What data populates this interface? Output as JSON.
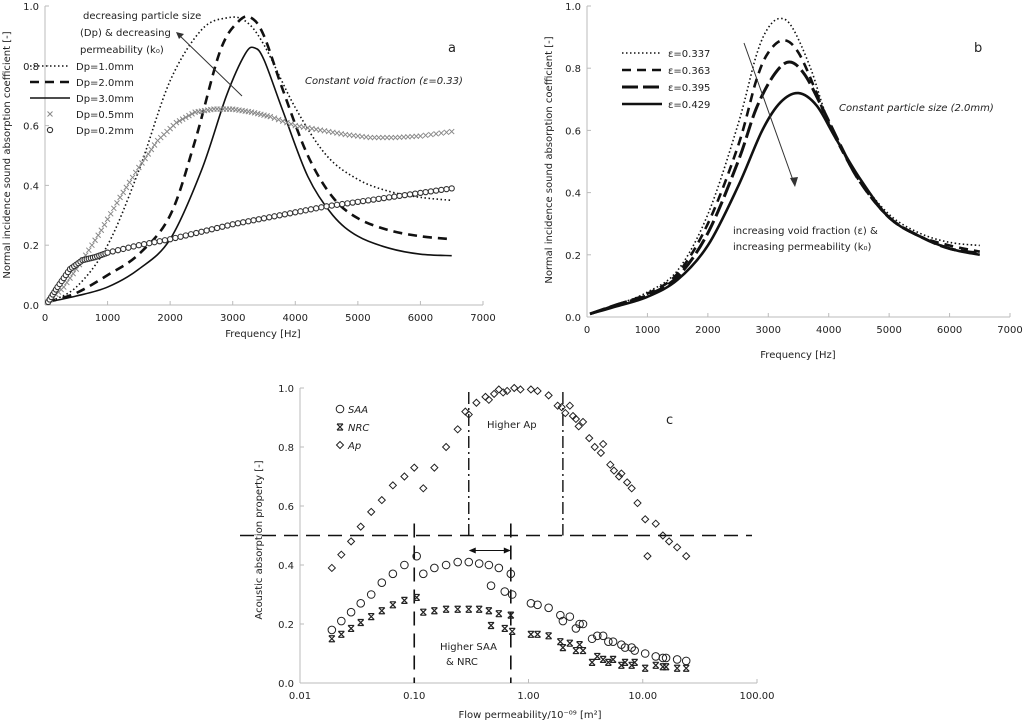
{
  "chart_data": [
    {
      "id": "a",
      "type": "line",
      "panel_label": "a",
      "xlabel": "Frequency [Hz]",
      "ylabel": "Normal incidence sound absorption coefficient [-]",
      "xlim": [
        0,
        7000
      ],
      "ylim": [
        0,
        1.0
      ],
      "x_ticks": [
        "0",
        "1000",
        "2000",
        "3000",
        "4000",
        "5000",
        "6000",
        "7000"
      ],
      "x_tick_values": [
        0,
        1000,
        2000,
        3000,
        4000,
        5000,
        6000,
        7000
      ],
      "y_ticks": [
        "0.0",
        "0.2",
        "0.4",
        "0.6",
        "0.8",
        "1.0"
      ],
      "y_tick_values": [
        0,
        0.2,
        0.4,
        0.6,
        0.8,
        1.0
      ],
      "annotations": [
        {
          "text": "decreasing particle size",
          "line": 1
        },
        {
          "text": "(Dp) & decreasing",
          "line": 2
        },
        {
          "text": "permeability (k₀)",
          "line": 3
        },
        {
          "text": "Constant void fraction (ε=0.33)",
          "line": 0
        }
      ],
      "series": [
        {
          "name": "Dp=1.0mm",
          "style": "dotted",
          "x": [
            50,
            500,
            1000,
            1500,
            2000,
            2500,
            2900,
            3200,
            3500,
            4000,
            4500,
            5000,
            5500,
            6000,
            6500
          ],
          "y": [
            0.01,
            0.06,
            0.2,
            0.45,
            0.75,
            0.92,
            0.96,
            0.95,
            0.87,
            0.66,
            0.5,
            0.42,
            0.38,
            0.36,
            0.35
          ]
        },
        {
          "name": "Dp=2.0mm",
          "style": "dashed",
          "x": [
            50,
            500,
            1000,
            1500,
            2000,
            2400,
            2800,
            3100,
            3300,
            3500,
            3800,
            4200,
            4600,
            5000,
            5500,
            6000,
            6500
          ],
          "y": [
            0.01,
            0.04,
            0.1,
            0.17,
            0.3,
            0.55,
            0.85,
            0.95,
            0.96,
            0.9,
            0.72,
            0.5,
            0.36,
            0.29,
            0.25,
            0.23,
            0.22
          ]
        },
        {
          "name": "Dp=3.0mm",
          "style": "solid",
          "x": [
            50,
            500,
            1000,
            1500,
            2000,
            2500,
            2900,
            3200,
            3350,
            3500,
            3800,
            4200,
            4600,
            5000,
            5500,
            6000,
            6500
          ],
          "y": [
            0.01,
            0.03,
            0.06,
            0.12,
            0.22,
            0.45,
            0.7,
            0.84,
            0.86,
            0.82,
            0.65,
            0.43,
            0.3,
            0.23,
            0.19,
            0.17,
            0.165
          ]
        },
        {
          "name": "Dp=0.5mm",
          "style": "marker-x",
          "x": [
            50,
            300,
            600,
            900,
            1200,
            1500,
            1800,
            2100,
            2400,
            2700,
            3000,
            3300,
            3600,
            4000,
            4400,
            4800,
            5200,
            5600,
            6000,
            6500
          ],
          "y": [
            0.01,
            0.06,
            0.15,
            0.25,
            0.36,
            0.46,
            0.55,
            0.61,
            0.645,
            0.655,
            0.655,
            0.645,
            0.63,
            0.6,
            0.585,
            0.57,
            0.56,
            0.56,
            0.565,
            0.58
          ]
        },
        {
          "name": "Dp=0.2mm",
          "style": "marker-o",
          "x": [
            50,
            200,
            400,
            600,
            800,
            1000,
            1500,
            2000,
            2500,
            3000,
            3500,
            4000,
            4500,
            5000,
            5500,
            6000,
            6500
          ],
          "y": [
            0.01,
            0.06,
            0.12,
            0.15,
            0.16,
            0.175,
            0.2,
            0.22,
            0.245,
            0.27,
            0.29,
            0.31,
            0.33,
            0.345,
            0.36,
            0.375,
            0.39
          ]
        }
      ]
    },
    {
      "id": "b",
      "type": "line",
      "panel_label": "b",
      "xlabel": "Frequency [Hz]",
      "ylabel": "Normal incidence sound absorption coefficient [-]",
      "xlim": [
        0,
        7000
      ],
      "ylim": [
        0,
        1.0
      ],
      "x_ticks": [
        "0",
        "1000",
        "2000",
        "3000",
        "4000",
        "5000",
        "6000",
        "7000"
      ],
      "x_tick_values": [
        0,
        1000,
        2000,
        3000,
        4000,
        5000,
        6000,
        7000
      ],
      "y_ticks": [
        "0.0",
        "0.2",
        "0.4",
        "0.6",
        "0.8",
        "1.0"
      ],
      "y_tick_values": [
        0,
        0.2,
        0.4,
        0.6,
        0.8,
        1.0
      ],
      "annotations": [
        {
          "text": "Constant particle size (2.0mm)",
          "line": 0
        },
        {
          "text": "increasing void fraction (ε) &",
          "line": 1
        },
        {
          "text": "increasing permeability (k₀)",
          "line": 2
        }
      ],
      "series": [
        {
          "name": "ε=0.337",
          "style": "dotted",
          "x": [
            50,
            500,
            1000,
            1500,
            2000,
            2500,
            2800,
            3000,
            3200,
            3400,
            3700,
            4000,
            4500,
            5000,
            5500,
            6000,
            6500
          ],
          "y": [
            0.01,
            0.04,
            0.08,
            0.15,
            0.33,
            0.62,
            0.84,
            0.93,
            0.96,
            0.93,
            0.8,
            0.63,
            0.45,
            0.33,
            0.27,
            0.24,
            0.23
          ]
        },
        {
          "name": "ε=0.363",
          "style": "dashed",
          "x": [
            50,
            500,
            1000,
            1500,
            2000,
            2500,
            2800,
            3000,
            3250,
            3500,
            3800,
            4000,
            4500,
            5000,
            5500,
            6000,
            6500
          ],
          "y": [
            0.01,
            0.04,
            0.075,
            0.14,
            0.3,
            0.55,
            0.76,
            0.85,
            0.89,
            0.85,
            0.72,
            0.62,
            0.44,
            0.32,
            0.26,
            0.23,
            0.21
          ]
        },
        {
          "name": "ε=0.395",
          "style": "long-dashed",
          "x": [
            50,
            500,
            1000,
            1500,
            2000,
            2500,
            2800,
            3100,
            3350,
            3600,
            3900,
            4200,
            4500,
            5000,
            5500,
            6000,
            6500
          ],
          "y": [
            0.01,
            0.04,
            0.07,
            0.13,
            0.27,
            0.5,
            0.67,
            0.78,
            0.82,
            0.78,
            0.67,
            0.55,
            0.44,
            0.32,
            0.26,
            0.22,
            0.205
          ]
        },
        {
          "name": "ε=0.429",
          "style": "solid",
          "x": [
            50,
            500,
            1000,
            1500,
            2000,
            2500,
            2900,
            3200,
            3500,
            3800,
            4100,
            4500,
            5000,
            5500,
            6000,
            6500
          ],
          "y": [
            0.01,
            0.035,
            0.065,
            0.12,
            0.23,
            0.42,
            0.6,
            0.69,
            0.72,
            0.68,
            0.58,
            0.45,
            0.32,
            0.26,
            0.22,
            0.2
          ]
        }
      ]
    },
    {
      "id": "c",
      "type": "scatter",
      "panel_label": "c",
      "xscale": "log",
      "xlabel": "Flow permeability/10⁻⁰⁹ [m²]",
      "ylabel": "Acoustic absorption property [-]",
      "xlim": [
        0.01,
        100
      ],
      "ylim": [
        0,
        1.0
      ],
      "x_ticks": [
        "0.01",
        "0.10",
        "1.00",
        "10.00",
        "100.00"
      ],
      "x_tick_values": [
        0.01,
        0.1,
        1,
        10,
        100
      ],
      "y_ticks": [
        "0.0",
        "0.2",
        "0.4",
        "0.6",
        "0.8",
        "1.0"
      ],
      "y_tick_values": [
        0,
        0.2,
        0.4,
        0.6,
        0.8,
        1.0
      ],
      "annotations": [
        {
          "text": "Higher Ap",
          "line": 0
        },
        {
          "text": "Higher SAA",
          "line": 1
        },
        {
          "text": "& NRC",
          "line": 2
        }
      ],
      "reference_lines": {
        "horizontal_dashed_y": 0.5,
        "vertical_dashed_x": [
          0.1,
          0.7
        ],
        "vertical_dashdot_x": [
          0.3,
          2.0
        ],
        "arrow_between_x": [
          0.3,
          0.7
        ]
      },
      "series": [
        {
          "name": "SAA",
          "style": "marker-circle",
          "x": [
            0.019,
            0.023,
            0.028,
            0.034,
            0.042,
            0.052,
            0.065,
            0.082,
            0.105,
            0.12,
            0.15,
            0.19,
            0.24,
            0.3,
            0.37,
            0.45,
            0.47,
            0.55,
            0.62,
            0.7,
            0.72,
            1.05,
            1.2,
            1.5,
            1.9,
            2.0,
            2.3,
            2.6,
            2.8,
            3.0,
            3.6,
            4.0,
            4.5,
            5.0,
            5.5,
            6.5,
            7.0,
            8.0,
            8.5,
            10.5,
            13,
            15,
            16,
            20,
            24
          ],
          "y": [
            0.18,
            0.21,
            0.24,
            0.27,
            0.3,
            0.34,
            0.37,
            0.4,
            0.43,
            0.37,
            0.39,
            0.4,
            0.41,
            0.41,
            0.405,
            0.4,
            0.33,
            0.39,
            0.31,
            0.37,
            0.3,
            0.27,
            0.265,
            0.255,
            0.23,
            0.21,
            0.225,
            0.185,
            0.2,
            0.2,
            0.15,
            0.16,
            0.16,
            0.14,
            0.14,
            0.13,
            0.12,
            0.12,
            0.11,
            0.1,
            0.09,
            0.085,
            0.085,
            0.08,
            0.075
          ]
        },
        {
          "name": "NRC",
          "style": "marker-star",
          "x": [
            0.019,
            0.023,
            0.028,
            0.034,
            0.042,
            0.052,
            0.065,
            0.082,
            0.105,
            0.12,
            0.15,
            0.19,
            0.24,
            0.3,
            0.37,
            0.45,
            0.47,
            0.55,
            0.62,
            0.7,
            0.72,
            1.05,
            1.2,
            1.5,
            1.9,
            2.0,
            2.3,
            2.6,
            2.8,
            3.0,
            3.6,
            4.0,
            4.5,
            5.0,
            5.5,
            6.5,
            7.0,
            8.0,
            8.5,
            10.5,
            13,
            15,
            16,
            20,
            24
          ],
          "y": [
            0.15,
            0.165,
            0.185,
            0.205,
            0.225,
            0.245,
            0.265,
            0.28,
            0.29,
            0.24,
            0.245,
            0.25,
            0.25,
            0.25,
            0.25,
            0.245,
            0.195,
            0.235,
            0.185,
            0.23,
            0.175,
            0.165,
            0.165,
            0.16,
            0.14,
            0.12,
            0.135,
            0.11,
            0.13,
            0.11,
            0.07,
            0.09,
            0.08,
            0.07,
            0.08,
            0.06,
            0.07,
            0.06,
            0.07,
            0.05,
            0.06,
            0.055,
            0.055,
            0.05,
            0.05
          ]
        },
        {
          "name": "Ap",
          "style": "marker-diamond",
          "x": [
            0.019,
            0.023,
            0.028,
            0.034,
            0.042,
            0.052,
            0.065,
            0.082,
            0.1,
            0.12,
            0.15,
            0.19,
            0.24,
            0.28,
            0.3,
            0.35,
            0.42,
            0.45,
            0.5,
            0.55,
            0.6,
            0.65,
            0.75,
            0.85,
            1.05,
            1.2,
            1.5,
            1.8,
            1.95,
            2.1,
            2.3,
            2.45,
            2.6,
            2.75,
            3.0,
            3.4,
            3.8,
            4.3,
            4.5,
            5.2,
            5.6,
            6.2,
            6.5,
            7.3,
            8.0,
            9.0,
            10.5,
            11,
            13,
            15,
            17,
            20,
            24
          ],
          "y": [
            0.39,
            0.435,
            0.48,
            0.53,
            0.58,
            0.62,
            0.67,
            0.7,
            0.73,
            0.66,
            0.73,
            0.8,
            0.86,
            0.92,
            0.91,
            0.95,
            0.97,
            0.96,
            0.98,
            0.995,
            0.985,
            0.99,
            1.0,
            0.995,
            0.995,
            0.99,
            0.975,
            0.94,
            0.935,
            0.915,
            0.94,
            0.905,
            0.895,
            0.87,
            0.885,
            0.83,
            0.8,
            0.78,
            0.81,
            0.74,
            0.72,
            0.7,
            0.71,
            0.68,
            0.66,
            0.61,
            0.555,
            0.43,
            0.54,
            0.5,
            0.48,
            0.46,
            0.43
          ]
        }
      ]
    }
  ]
}
